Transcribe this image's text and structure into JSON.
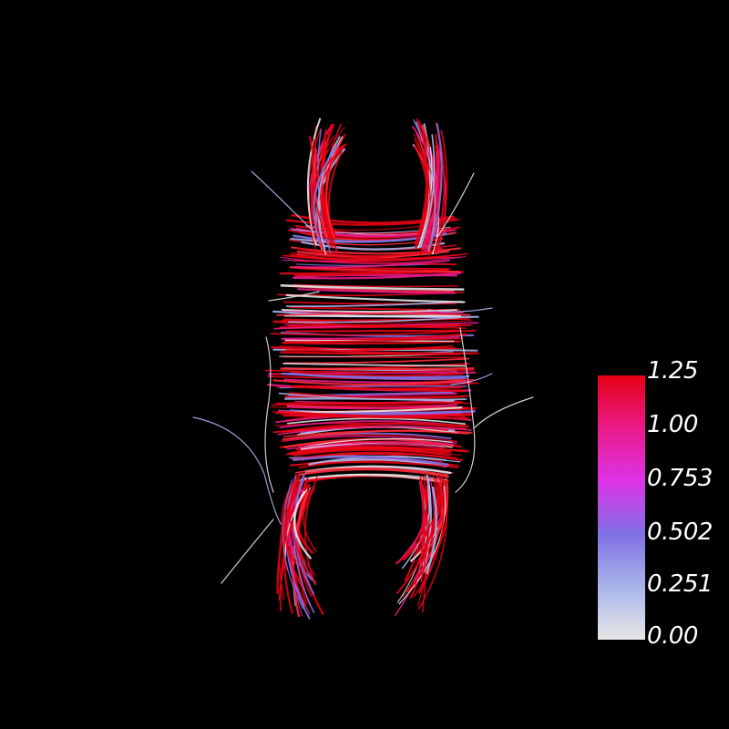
{
  "scene": {
    "background_color": "#000000",
    "object": "fiber-tract-streamlines"
  },
  "colormap": {
    "colors": [
      "#e6e6e6",
      "#a8b4ea",
      "#8070e4",
      "#dd33e8",
      "#ea1a8a",
      "#e60014"
    ],
    "ticks": [
      {
        "label": "1.25",
        "value": 1.25
      },
      {
        "label": "1.00",
        "value": 1.0
      },
      {
        "label": "0.753",
        "value": 0.753
      },
      {
        "label": "0.502",
        "value": 0.502
      },
      {
        "label": "0.251",
        "value": 0.251
      },
      {
        "label": "0.00",
        "value": 0.0
      }
    ]
  }
}
